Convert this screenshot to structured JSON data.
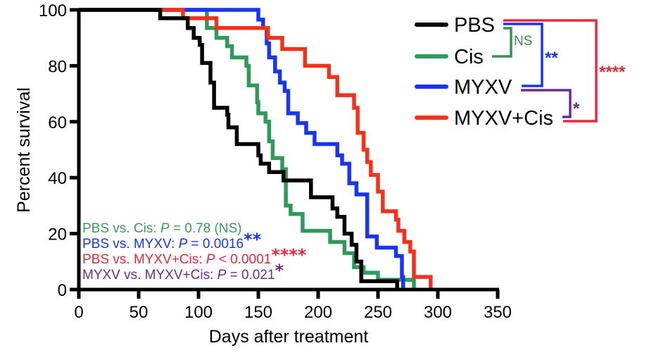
{
  "chart_data": {
    "type": "line",
    "subtype": "kaplan-meier step",
    "xlabel": "Days after treatment",
    "ylabel": "Percent survival",
    "xlim": [
      0,
      350
    ],
    "ylim": [
      0,
      100
    ],
    "xticks": [
      0,
      50,
      100,
      150,
      200,
      250,
      300,
      350
    ],
    "yticks": [
      0,
      20,
      40,
      60,
      80,
      100
    ],
    "grid": false,
    "legend_placement": "top-right",
    "series": [
      {
        "name": "PBS",
        "color": "#000000",
        "steps": [
          [
            0,
            100
          ],
          [
            68,
            97
          ],
          [
            91,
            93.5
          ],
          [
            96,
            90
          ],
          [
            101,
            87.5
          ],
          [
            103,
            81
          ],
          [
            110,
            74
          ],
          [
            113,
            65
          ],
          [
            124,
            62.5
          ],
          [
            125,
            58
          ],
          [
            132,
            52
          ],
          [
            150,
            48
          ],
          [
            152,
            45
          ],
          [
            159,
            42
          ],
          [
            171,
            39
          ],
          [
            194,
            33
          ],
          [
            212,
            29
          ],
          [
            216,
            26
          ],
          [
            222,
            20
          ],
          [
            228,
            16
          ],
          [
            232,
            10
          ],
          [
            236,
            3
          ],
          [
            266,
            0
          ]
        ]
      },
      {
        "name": "Cis",
        "color": "#2e9b5b",
        "steps": [
          [
            0,
            100
          ],
          [
            107,
            93.5
          ],
          [
            115,
            90
          ],
          [
            124,
            87
          ],
          [
            128,
            83
          ],
          [
            140,
            80
          ],
          [
            142,
            73
          ],
          [
            149,
            67
          ],
          [
            150,
            63
          ],
          [
            156,
            60
          ],
          [
            159,
            53
          ],
          [
            162,
            47
          ],
          [
            170,
            43
          ],
          [
            173,
            30
          ],
          [
            177,
            27
          ],
          [
            187,
            21
          ],
          [
            210,
            17
          ],
          [
            222,
            13
          ],
          [
            230,
            8
          ],
          [
            238,
            6
          ],
          [
            250,
            3.5
          ],
          [
            280,
            0
          ]
        ]
      },
      {
        "name": "MYXV",
        "color": "#1a35f0",
        "steps": [
          [
            0,
            100
          ],
          [
            150,
            96.5
          ],
          [
            154,
            93.5
          ],
          [
            157,
            88
          ],
          [
            159,
            83
          ],
          [
            164,
            78
          ],
          [
            168,
            74
          ],
          [
            172,
            71
          ],
          [
            175,
            63
          ],
          [
            183,
            59.5
          ],
          [
            190,
            56
          ],
          [
            197,
            52
          ],
          [
            216,
            48
          ],
          [
            220,
            45
          ],
          [
            226,
            38
          ],
          [
            232,
            34
          ],
          [
            241,
            19
          ],
          [
            249,
            15
          ],
          [
            265,
            12
          ],
          [
            270,
            4.5
          ],
          [
            271,
            0
          ]
        ]
      },
      {
        "name": "MYXV+Cis",
        "color": "#f2321c",
        "steps": [
          [
            0,
            100
          ],
          [
            87,
            97
          ],
          [
            115,
            93.5
          ],
          [
            158,
            90
          ],
          [
            170,
            86
          ],
          [
            189,
            80
          ],
          [
            209,
            76
          ],
          [
            216,
            69.5
          ],
          [
            230,
            65
          ],
          [
            233,
            56
          ],
          [
            238,
            50
          ],
          [
            241,
            45.6
          ],
          [
            244,
            41
          ],
          [
            250,
            35
          ],
          [
            254,
            28
          ],
          [
            265,
            25
          ],
          [
            267,
            21
          ],
          [
            272,
            17
          ],
          [
            277,
            13.6
          ],
          [
            280,
            4.5
          ],
          [
            294,
            0
          ]
        ]
      }
    ],
    "comparisons": [
      {
        "label": "NS",
        "color": "#3a8f55",
        "pair": [
          "PBS",
          "Cis"
        ]
      },
      {
        "label": "**",
        "color": "#1a35f0",
        "pair": [
          "PBS",
          "MYXV"
        ]
      },
      {
        "label": "*",
        "color": "#6a2d8c",
        "pair": [
          "MYXV",
          "MYXV+Cis"
        ]
      },
      {
        "label": "****",
        "color": "#e8283c",
        "pair": [
          "PBS",
          "MYXV+Cis"
        ]
      }
    ],
    "annotations": [
      {
        "prefix": "PBS vs. Cis: ",
        "p": "P",
        "rest": " = 0.78 (NS)",
        "stars": "",
        "color": "#3a9a5a"
      },
      {
        "prefix": "PBS vs. MYXV: ",
        "p": "P",
        "rest": " = 0.0016",
        "stars": "**",
        "color": "#1a35f0"
      },
      {
        "prefix": "PBS vs. MYXV+Cis: ",
        "p": "P",
        "rest": " < 0.0001",
        "stars": "****",
        "color": "#e8283c"
      },
      {
        "prefix": "MYXV vs. MYXV+Cis: ",
        "p": "P",
        "rest": " = 0.021",
        "stars": "*",
        "color": "#6a2d8c"
      }
    ]
  }
}
